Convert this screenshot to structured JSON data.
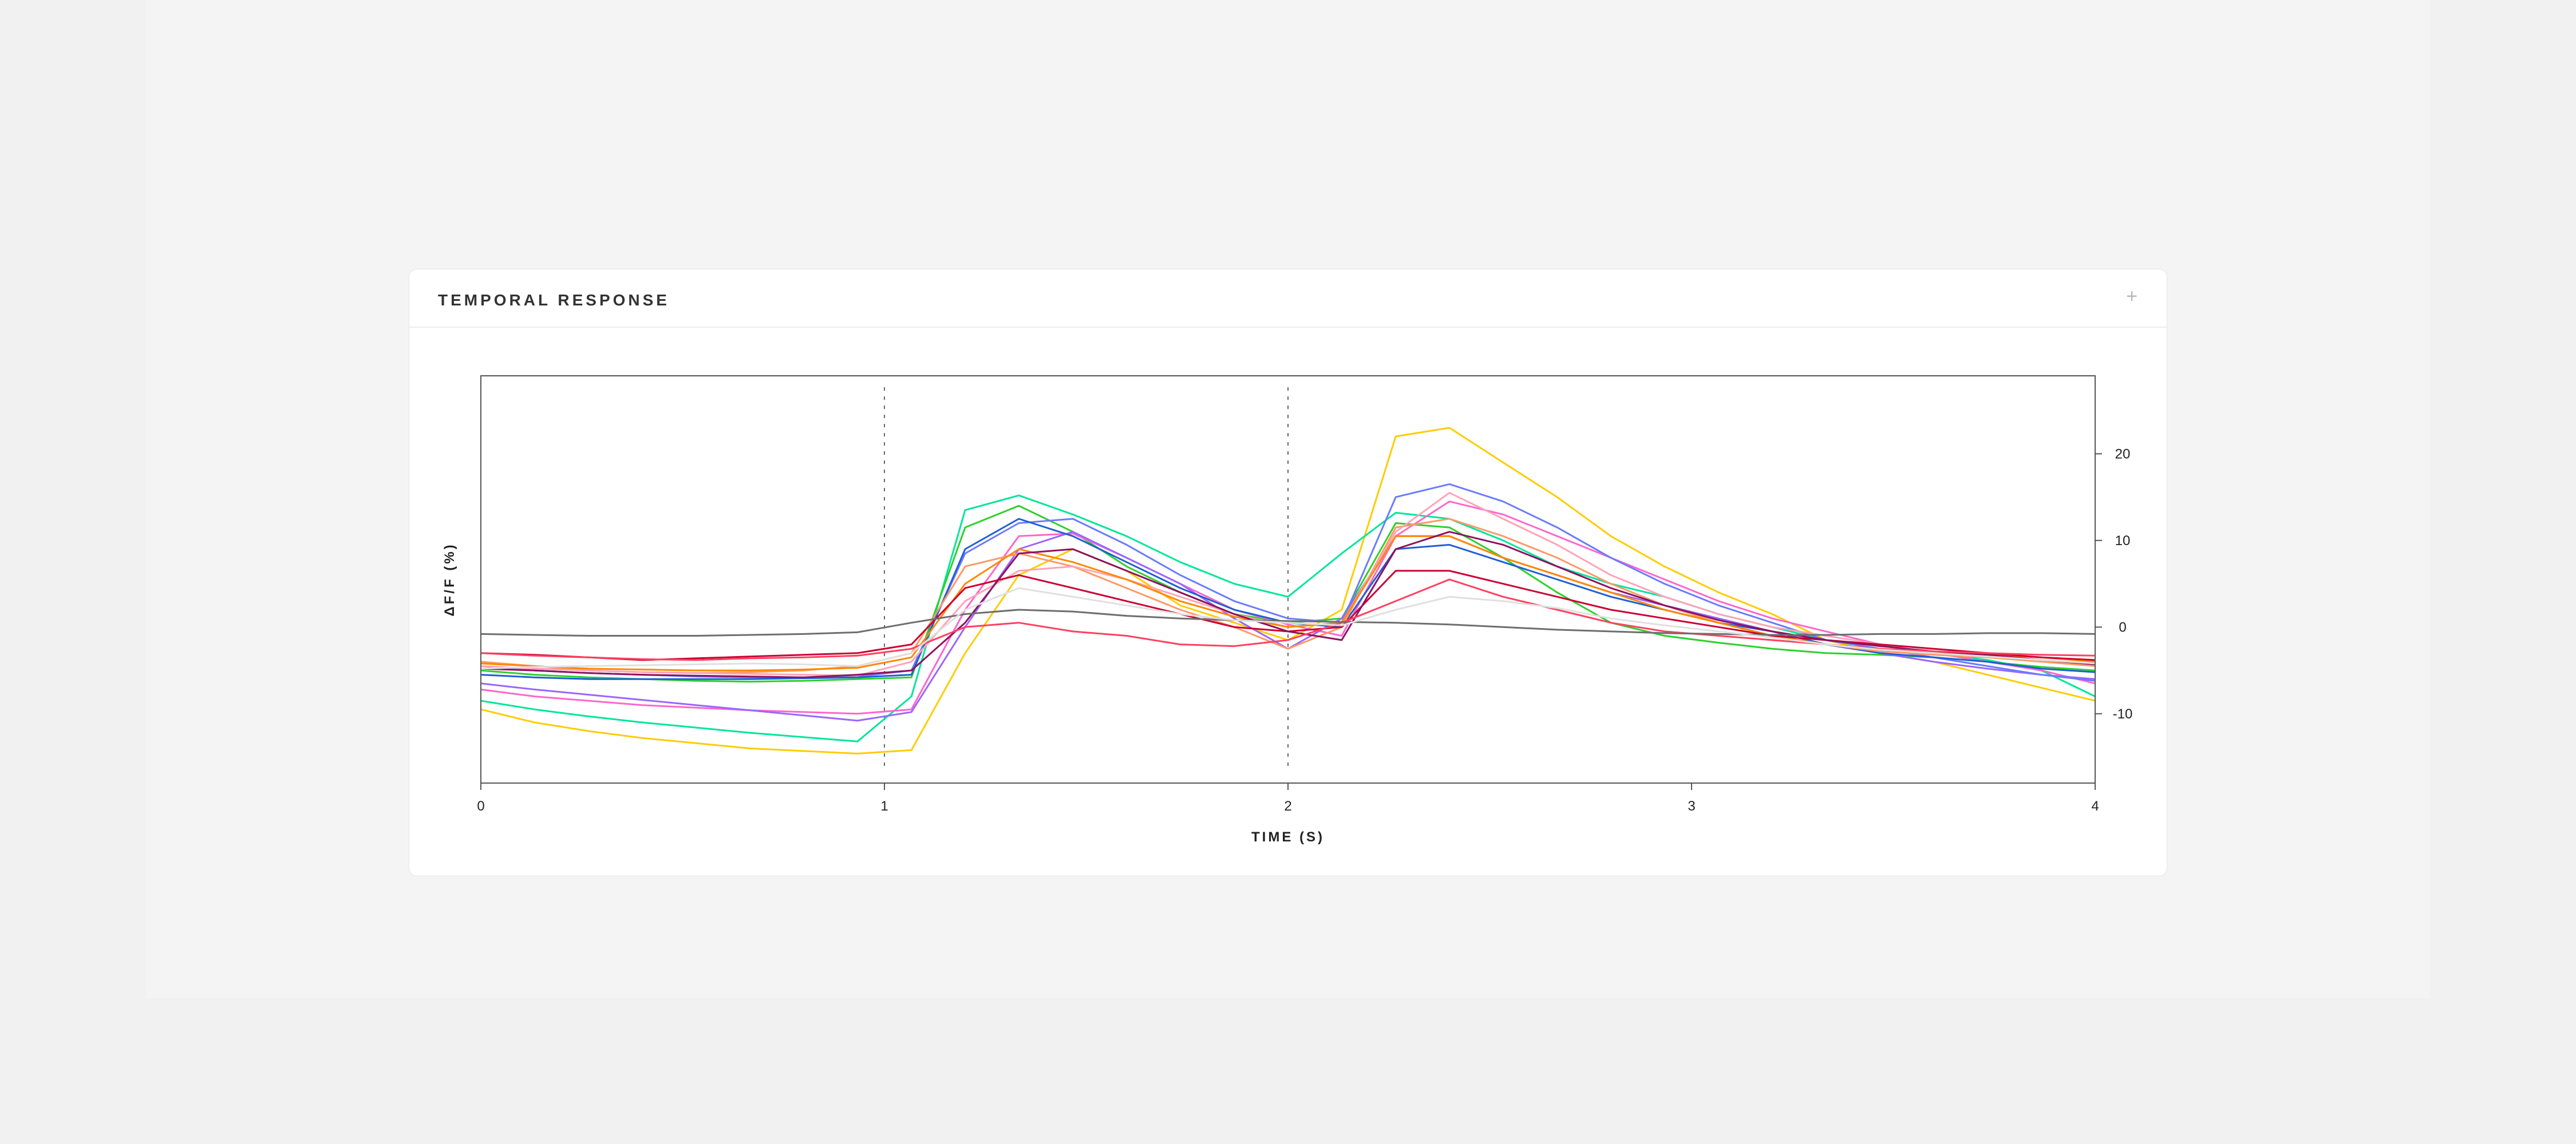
{
  "panel": {
    "title": "TEMPORAL RESPONSE",
    "expand_icon": "plus-icon"
  },
  "chart_data": {
    "type": "line",
    "xlabel": "TIME (S)",
    "ylabel": "ΔF/F (%)",
    "xlim": [
      0,
      4
    ],
    "ylim": [
      -18,
      29
    ],
    "xticks": [
      0,
      1,
      2,
      3,
      4
    ],
    "yticks": [
      -10,
      0,
      10,
      20
    ],
    "y_axis_position": "right",
    "grid": false,
    "legend": "none",
    "event_markers": [
      1,
      2
    ],
    "x": [
      0,
      0.133,
      0.267,
      0.4,
      0.533,
      0.667,
      0.8,
      0.933,
      1.067,
      1.2,
      1.333,
      1.467,
      1.6,
      1.733,
      1.867,
      2.0,
      2.133,
      2.267,
      2.4,
      2.533,
      2.667,
      2.8,
      2.933,
      3.067,
      3.2,
      3.333,
      3.467,
      3.6,
      3.733,
      3.867,
      4.0
    ],
    "series": [
      {
        "color": "#ffcc00",
        "values": [
          -9.5,
          -11,
          -12,
          -12.8,
          -13.4,
          -14,
          -14.3,
          -14.6,
          -14.2,
          -3,
          6,
          9,
          6.5,
          2.5,
          0.5,
          -1.5,
          2,
          22,
          23,
          19,
          15,
          10.5,
          7,
          4,
          1.5,
          -1.5,
          -3,
          -4,
          -5.5,
          -7,
          -8.5
        ]
      },
      {
        "color": "#00e69a",
        "values": [
          -8.5,
          -9.5,
          -10.3,
          -11,
          -11.6,
          -12.2,
          -12.7,
          -13.2,
          -8,
          13.5,
          15.2,
          13,
          10.5,
          7.5,
          5,
          3.5,
          8.5,
          13.2,
          12.5,
          10,
          7,
          5,
          3.5,
          1.5,
          0,
          -1.5,
          -2.5,
          -3,
          -3.8,
          -5,
          -8
        ]
      },
      {
        "color": "#2bd12b",
        "values": [
          -5,
          -5.5,
          -5.8,
          -6,
          -6.2,
          -6.3,
          -6.2,
          -6,
          -5.8,
          11.5,
          14,
          11,
          7,
          4,
          1.5,
          0.5,
          1,
          12,
          11.5,
          8,
          4,
          0.5,
          -1,
          -1.8,
          -2.5,
          -3,
          -3.2,
          -3.5,
          -4,
          -4.6,
          -5
        ]
      },
      {
        "color": "#ff66cc",
        "values": [
          -7.2,
          -8,
          -8.5,
          -9,
          -9.3,
          -9.6,
          -9.8,
          -10,
          -9.5,
          2,
          10.5,
          10.8,
          8,
          5,
          2,
          0.3,
          -1,
          10.5,
          14.5,
          13,
          10.5,
          8,
          5.5,
          3,
          1,
          -0.5,
          -2,
          -3,
          -4,
          -5,
          -6.5
        ]
      },
      {
        "color": "#9966ff",
        "values": [
          -6.5,
          -7.2,
          -7.8,
          -8.4,
          -9,
          -9.6,
          -10.2,
          -10.8,
          -9.8,
          0,
          9,
          11,
          8,
          5,
          1,
          -2.5,
          1,
          10.5,
          10.5,
          8,
          6,
          4,
          2.5,
          1,
          -0.5,
          -2,
          -3,
          -4,
          -4.8,
          -5.5,
          -6
        ]
      },
      {
        "color": "#6b7bff",
        "values": [
          -4.5,
          -5,
          -5.3,
          -5.5,
          -5.7,
          -5.8,
          -5.8,
          -5.7,
          -5,
          8.5,
          12,
          12.5,
          9.5,
          6,
          3,
          1,
          0.5,
          15,
          16.5,
          14.5,
          11.5,
          8,
          5,
          2.5,
          0.5,
          -1.5,
          -2.5,
          -3.5,
          -4.5,
          -5.5,
          -6.2
        ]
      },
      {
        "color": "#1f5fd6",
        "values": [
          -5.5,
          -5.8,
          -6,
          -6,
          -6,
          -6,
          -5.9,
          -5.8,
          -5.5,
          9,
          12.5,
          10.5,
          7.5,
          4.5,
          2,
          0.5,
          0,
          9,
          9.5,
          7.5,
          5.5,
          3.5,
          2,
          0.5,
          -0.5,
          -2,
          -3,
          -3.5,
          -4,
          -4.8,
          -5.2
        ]
      },
      {
        "color": "#ff9966",
        "values": [
          -4,
          -4.5,
          -5,
          -5.2,
          -5.3,
          -5.2,
          -5,
          -4.5,
          -3,
          7,
          8.5,
          7,
          4.5,
          2,
          0,
          -2.5,
          0,
          11.5,
          12.5,
          10.5,
          8,
          5,
          2.5,
          0.5,
          -1,
          -2,
          -2.8,
          -3.2,
          -3.5,
          -4,
          -4.5
        ]
      },
      {
        "color": "#ffa3b8",
        "values": [
          -4.5,
          -4.8,
          -5,
          -5.2,
          -5.3,
          -5.4,
          -5.5,
          -5.6,
          -4,
          3,
          6.5,
          7,
          5.5,
          3.5,
          1.5,
          0,
          0.5,
          11,
          15.5,
          12.5,
          9.5,
          6,
          3.5,
          1.5,
          0,
          -1,
          -2,
          -2.5,
          -3,
          -3.5,
          -4
        ]
      },
      {
        "color": "#ff8800",
        "values": [
          -4.2,
          -4.5,
          -4.8,
          -4.9,
          -5,
          -5,
          -4.9,
          -4.7,
          -3.5,
          5,
          9,
          7.5,
          5.5,
          3,
          1.2,
          0,
          0.5,
          10.5,
          10.5,
          8,
          6,
          4,
          2,
          0.5,
          -1,
          -2,
          -2.5,
          -3,
          -3.2,
          -3.5,
          -4
        ]
      },
      {
        "color": "#cc0033",
        "values": [
          -3,
          -3.2,
          -3.5,
          -3.8,
          -3.6,
          -3.4,
          -3.2,
          -3,
          -2,
          4.5,
          6,
          4.5,
          3,
          1.5,
          0,
          -0.5,
          0,
          6.5,
          6.5,
          5,
          3.5,
          2,
          1,
          0,
          -1,
          -1.5,
          -2,
          -2.5,
          -3,
          -3.5,
          -3.8
        ]
      },
      {
        "color": "#8e1260",
        "values": [
          -4.8,
          -5,
          -5.3,
          -5.5,
          -5.6,
          -5.7,
          -5.8,
          -5.5,
          -5,
          0.5,
          8.5,
          9,
          6.5,
          4,
          1.5,
          -0.5,
          -1.5,
          9,
          11,
          9.5,
          7,
          4.5,
          2.5,
          0.8,
          -0.5,
          -1.5,
          -2.2,
          -2.8,
          -3.2,
          -3.8,
          -4.3
        ]
      },
      {
        "color": "#ff4060",
        "values": [
          -3,
          -3.3,
          -3.5,
          -3.7,
          -3.8,
          -3.6,
          -3.5,
          -3.3,
          -2.5,
          0,
          0.5,
          -0.5,
          -1,
          -2,
          -2.2,
          -1.5,
          0.5,
          3,
          5.5,
          3.5,
          2,
          0.5,
          -0.5,
          -1,
          -1.5,
          -2,
          -2.5,
          -2.8,
          -3,
          -3.2,
          -3.3
        ]
      },
      {
        "color": "#6e6e6e",
        "values": [
          -0.8,
          -0.9,
          -1,
          -1,
          -1,
          -0.9,
          -0.8,
          -0.6,
          0.5,
          1.5,
          2,
          1.8,
          1.3,
          1,
          0.8,
          0.7,
          0.6,
          0.5,
          0.3,
          0,
          -0.3,
          -0.5,
          -0.7,
          -0.8,
          -0.9,
          -0.9,
          -0.8,
          -0.8,
          -0.7,
          -0.7,
          -0.8
        ]
      },
      {
        "color": "#e0e0e0",
        "values": [
          -4.8,
          -4.6,
          -4.5,
          -4.4,
          -4.3,
          -4.2,
          -4.3,
          -4.5,
          -3,
          2,
          4.5,
          3.5,
          2.5,
          1.5,
          0.8,
          0.5,
          0.2,
          2,
          3.5,
          3,
          2.2,
          1,
          0.2,
          -0.5,
          -1.2,
          -2,
          -2.6,
          -3,
          -3.4,
          -3.8,
          -4.2
        ]
      }
    ]
  }
}
